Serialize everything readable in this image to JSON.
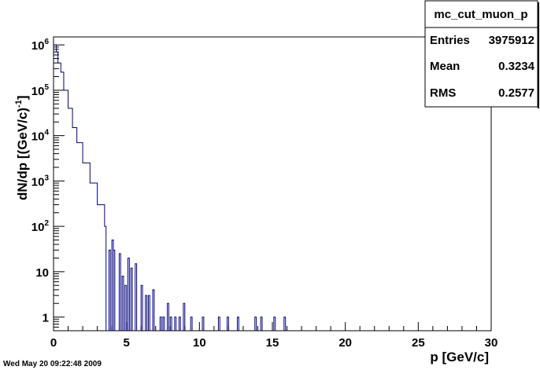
{
  "chart_data": {
    "type": "histogram",
    "hist_name": "mc_cut_muon_p",
    "title": "",
    "xlabel": "p [GeV/c]",
    "ylabel_main": "dN/dp [(GeV/c)",
    "ylabel_sup": "-1",
    "ylabel_tail": "]",
    "xlim": [
      0,
      30
    ],
    "ylim": [
      0.5,
      1500000
    ],
    "yscale": "log",
    "line_color": "#00007f",
    "grid": false,
    "x_ticks": [
      "0",
      "5",
      "10",
      "15",
      "20",
      "25",
      "30"
    ],
    "y_ticks": [
      {
        "value": 1,
        "label": "1",
        "base": "",
        "exp": ""
      },
      {
        "value": 10,
        "label": "10",
        "base": "",
        "exp": ""
      },
      {
        "value": 100,
        "label": "",
        "base": "10",
        "exp": "2"
      },
      {
        "value": 1000,
        "label": "",
        "base": "10",
        "exp": "3"
      },
      {
        "value": 10000,
        "label": "",
        "base": "10",
        "exp": "4"
      },
      {
        "value": 100000,
        "label": "",
        "base": "10",
        "exp": "5"
      },
      {
        "value": 1000000,
        "label": "",
        "base": "10",
        "exp": "6"
      }
    ],
    "stats": {
      "Entries": "3975912",
      "Mean": "0.3234",
      "RMS": "0.2577"
    },
    "curve": [
      [
        0.1,
        1000000
      ],
      [
        0.2,
        700000
      ],
      [
        0.3,
        400000
      ],
      [
        0.5,
        250000
      ],
      [
        0.7,
        100000
      ],
      [
        1.0,
        40000
      ],
      [
        1.3,
        15000
      ],
      [
        1.6,
        7000
      ],
      [
        2.0,
        2500
      ],
      [
        2.5,
        900
      ],
      [
        3.0,
        300
      ],
      [
        3.5,
        100
      ]
    ],
    "isolated_bins": [
      [
        3.8,
        30
      ],
      [
        4.0,
        50
      ],
      [
        4.1,
        30
      ],
      [
        4.5,
        25
      ],
      [
        4.7,
        8
      ],
      [
        4.9,
        5
      ],
      [
        5.1,
        20
      ],
      [
        5.3,
        12
      ],
      [
        5.6,
        15
      ],
      [
        6.0,
        5
      ],
      [
        6.3,
        3
      ],
      [
        6.5,
        3
      ],
      [
        6.8,
        4
      ],
      [
        7.3,
        1
      ],
      [
        7.5,
        1
      ],
      [
        7.8,
        2
      ],
      [
        8.0,
        1
      ],
      [
        8.3,
        1
      ],
      [
        8.6,
        1
      ],
      [
        8.9,
        2
      ],
      [
        9.4,
        1
      ],
      [
        10.2,
        1
      ],
      [
        11.3,
        1
      ],
      [
        11.9,
        1
      ],
      [
        12.6,
        1
      ],
      [
        13.8,
        1
      ],
      [
        14.2,
        1
      ],
      [
        15.1,
        1
      ],
      [
        15.8,
        1
      ]
    ]
  },
  "timestamp": "Wed May 20 09:22:48 2009"
}
